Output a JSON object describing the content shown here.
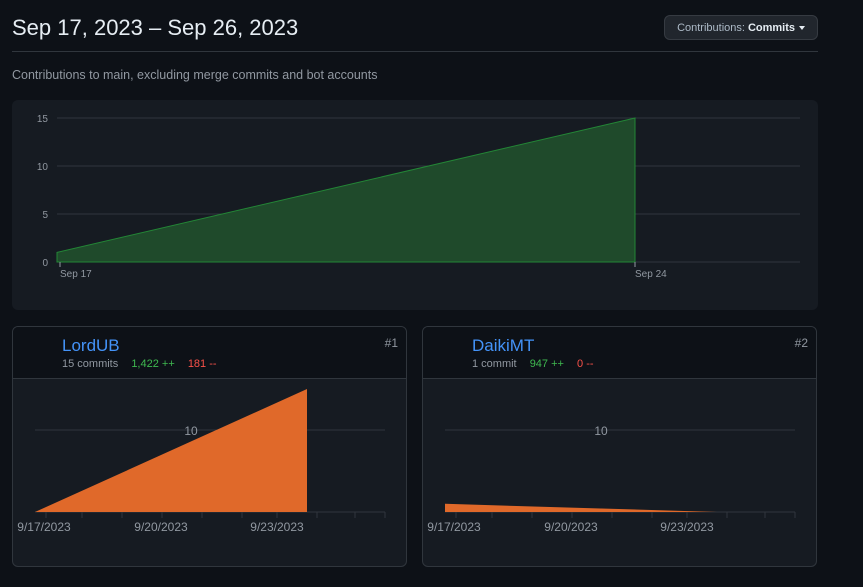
{
  "header": {
    "title": "Sep 17, 2023 – Sep 26, 2023",
    "contributions_label": "Contributions:",
    "contributions_value": "Commits"
  },
  "subtitle": "Contributions to main, excluding merge commits and bot accounts",
  "colors": {
    "main_fill": "#1f4a2b",
    "main_stroke": "#238636",
    "user_fill": "#e0692a",
    "added": "#3fb950",
    "deleted": "#f85149",
    "link": "#4493f8"
  },
  "chart_data": [
    {
      "type": "area",
      "x": [
        "Sep 17",
        "Sep 24"
      ],
      "y": [
        1,
        15
      ],
      "x_ticks": [
        "Sep 17",
        "Sep 24"
      ],
      "y_ticks": [
        "0",
        "5",
        "10",
        "15"
      ],
      "ylim": [
        0,
        15
      ],
      "grid": true
    },
    {
      "type": "area",
      "x": [
        "9/17/2023",
        "9/24/2023"
      ],
      "y": [
        0,
        15
      ],
      "x_ticks": [
        "9/17/2023",
        "9/20/2023",
        "9/23/2023"
      ],
      "y_ticks": [
        "10"
      ],
      "ylim": [
        0,
        15
      ]
    },
    {
      "type": "area",
      "x": [
        "9/17/2023",
        "9/24/2023"
      ],
      "y": [
        1,
        0
      ],
      "x_ticks": [
        "9/17/2023",
        "9/20/2023",
        "9/23/2023"
      ],
      "y_ticks": [
        "10"
      ],
      "ylim": [
        0,
        15
      ]
    }
  ],
  "contributors": [
    {
      "name": "LordUB",
      "rank": "#1",
      "commits": "15 commits",
      "additions": "1,422 ++",
      "deletions": "181 --",
      "avatar_icon": "identicon-avatar"
    },
    {
      "name": "DaikiMT",
      "rank": "#2",
      "commits": "1 commit",
      "additions": "947 ++",
      "deletions": "0 --",
      "avatar_icon": "cat-avatar"
    }
  ]
}
